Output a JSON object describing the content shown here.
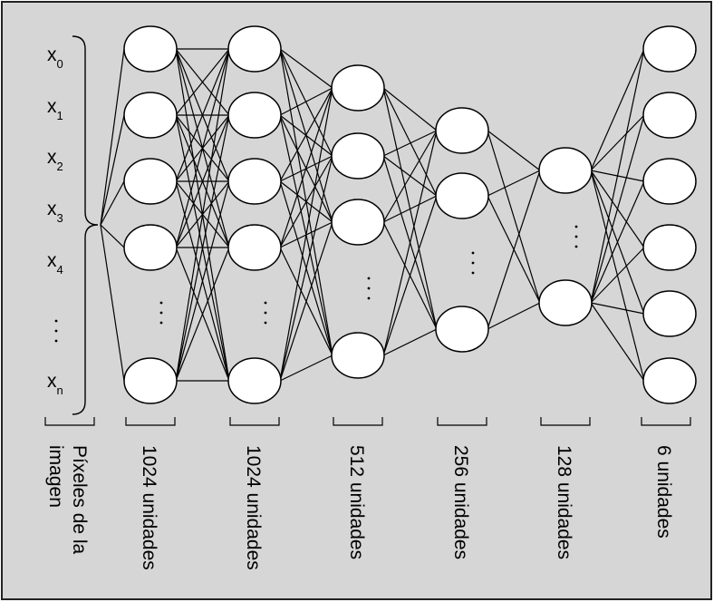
{
  "colors": {
    "background": "#d6d6d6",
    "node_fill": "#ffffff",
    "stroke": "#000000",
    "frame": "#222222"
  },
  "inputs": [
    {
      "base": "x",
      "sub": "0"
    },
    {
      "base": "x",
      "sub": "1"
    },
    {
      "base": "x",
      "sub": "2"
    },
    {
      "base": "x",
      "sub": "3"
    },
    {
      "base": "x",
      "sub": "4"
    },
    {
      "ellipsis": true
    },
    {
      "base": "x",
      "sub": "n"
    }
  ],
  "layers": [
    {
      "caption": "Píxeles de la\nimagen"
    },
    {
      "caption": "1024 unidades",
      "visible_nodes": 5,
      "ellipsis": true
    },
    {
      "caption": "1024 unidades",
      "visible_nodes": 5,
      "ellipsis": true
    },
    {
      "caption": "512 unidades",
      "visible_nodes": 4,
      "ellipsis": true
    },
    {
      "caption": "256 unidades",
      "visible_nodes": 3,
      "ellipsis": true
    },
    {
      "caption": "128 unidades",
      "visible_nodes": 2,
      "ellipsis": true
    },
    {
      "caption": "6 unidades",
      "visible_nodes": 6,
      "ellipsis": false
    }
  ]
}
